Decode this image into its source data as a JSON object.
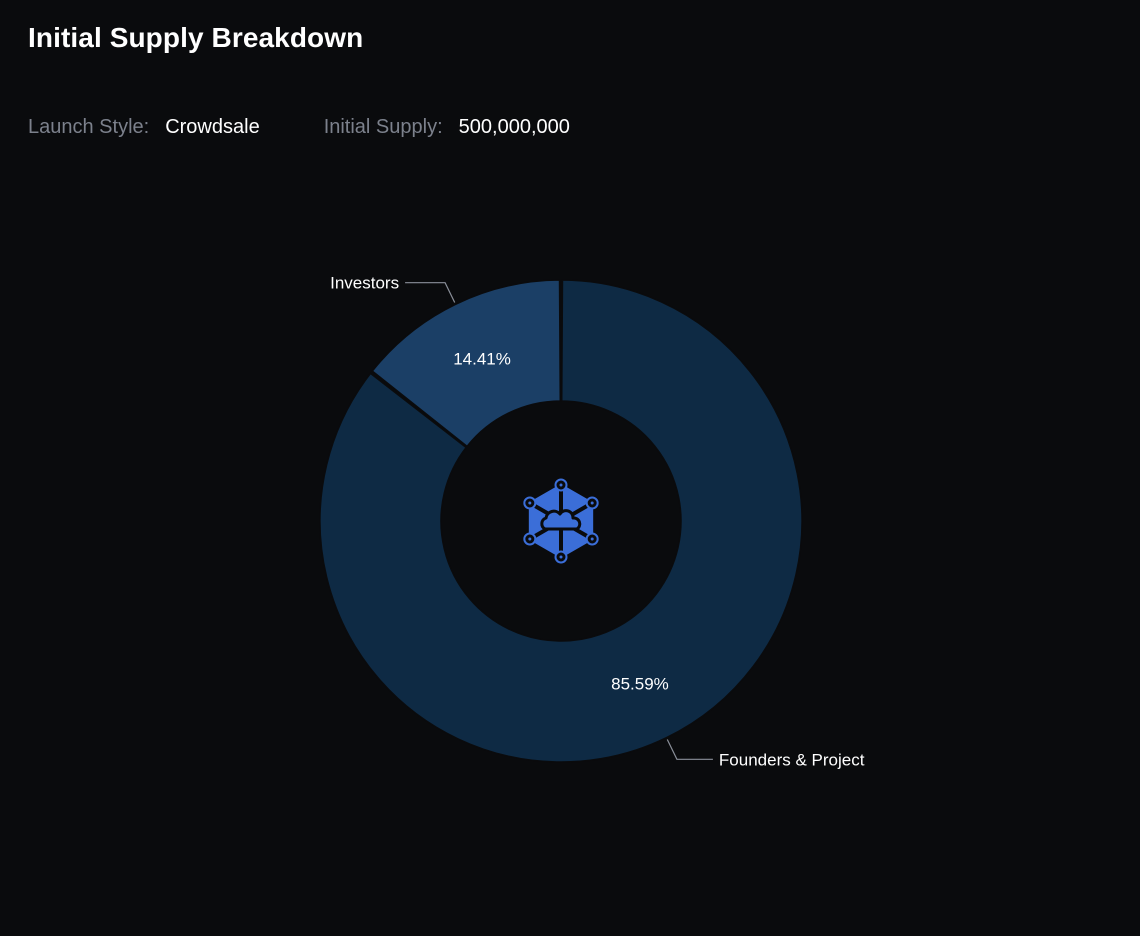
{
  "page": {
    "title": "Initial Supply Breakdown"
  },
  "meta": {
    "launch_style_label": "Launch Style:",
    "launch_style_value": "Crowdsale",
    "initial_supply_label": "Initial Supply:",
    "initial_supply_value": "500,000,000"
  },
  "chart_data": {
    "type": "pie",
    "variant": "donut",
    "title": "",
    "slices": [
      {
        "label": "Investors",
        "value": 14.41,
        "value_label": "14.41%",
        "color": "#1b3f66"
      },
      {
        "label": "Founders & Project",
        "value": 85.59,
        "value_label": "85.59%",
        "color": "#0e2a44"
      }
    ],
    "center_icon": "network-cloud-hexagon-logo",
    "legend": "none (outside leader-line labels)"
  },
  "colors": {
    "background": "#0a0b0d",
    "muted_text": "#7c818c",
    "leader_line": "#8a8f99",
    "logo_blue": "#3b6ed8"
  }
}
